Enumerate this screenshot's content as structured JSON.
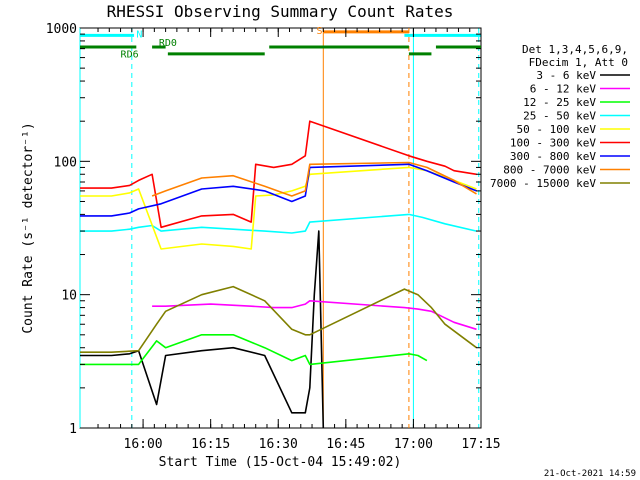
{
  "chart_data": {
    "type": "line",
    "title": "RHESSI Observing Summary Count Rates",
    "xlabel": "Start Time (15-Oct-04 15:49:02)",
    "ylabel": "Count Rate (s⁻¹ detector⁻¹)",
    "y_scale": "log",
    "ylim": [
      1,
      1000
    ],
    "xlim_minutes": [
      -3,
      86
    ],
    "x_ticks": [
      {
        "label": "16:00",
        "min": 11
      },
      {
        "label": "16:15",
        "min": 26
      },
      {
        "label": "16:30",
        "min": 41
      },
      {
        "label": "16:45",
        "min": 56
      },
      {
        "label": "17:00",
        "min": 71
      },
      {
        "label": "17:15",
        "min": 86
      }
    ],
    "y_ticks": [
      {
        "label": "1",
        "value": 1
      },
      {
        "label": "10",
        "value": 10
      },
      {
        "label": "100",
        "value": 100
      },
      {
        "label": "1000",
        "value": 1000
      }
    ],
    "legend_header": [
      "Det 1,3,4,5,6,9,",
      "FDecim 1, Att 0"
    ],
    "legend_position": "right",
    "series": [
      {
        "name": "3 - 6 keV",
        "color": "#000000",
        "points": [
          [
            -3,
            3.5
          ],
          [
            4,
            3.5
          ],
          [
            8,
            3.6
          ],
          [
            10,
            3.8
          ],
          [
            14,
            1.5
          ],
          [
            16,
            3.5
          ],
          [
            24,
            3.8
          ],
          [
            31,
            4
          ],
          [
            38,
            3.5
          ],
          [
            44,
            1.3
          ],
          [
            45,
            1.3
          ],
          [
            47,
            1.3
          ],
          [
            48,
            2
          ],
          [
            49,
            10
          ],
          [
            50,
            30
          ],
          [
            51,
            1
          ]
        ]
      },
      {
        "name": "6 - 12 keV",
        "color": "#ff00ff",
        "points": [
          [
            13,
            8.2
          ],
          [
            16,
            8.2
          ],
          [
            26,
            8.5
          ],
          [
            35,
            8.2
          ],
          [
            40,
            8
          ],
          [
            44,
            8
          ],
          [
            47,
            8.5
          ],
          [
            48,
            9
          ],
          [
            69,
            8
          ],
          [
            72,
            7.8
          ],
          [
            75,
            7.5
          ],
          [
            80,
            6.2
          ],
          [
            85,
            5.5
          ]
        ]
      },
      {
        "name": "12 - 25 keV",
        "color": "#00ff00",
        "points": [
          [
            -3,
            3
          ],
          [
            4,
            3
          ],
          [
            10,
            3
          ],
          [
            14,
            4.5
          ],
          [
            16,
            4
          ],
          [
            24,
            5
          ],
          [
            31,
            5
          ],
          [
            38,
            4
          ],
          [
            44,
            3.2
          ],
          [
            47,
            3.5
          ],
          [
            48,
            3
          ],
          [
            70,
            3.6
          ],
          [
            72,
            3.5
          ],
          [
            74,
            3.2
          ]
        ]
      },
      {
        "name": "25 - 50 keV",
        "color": "#00ffff",
        "points": [
          [
            -3,
            30
          ],
          [
            4,
            30
          ],
          [
            8,
            31
          ],
          [
            10,
            32
          ],
          [
            13,
            33
          ],
          [
            15,
            30
          ],
          [
            24,
            32
          ],
          [
            31,
            31
          ],
          [
            38,
            30
          ],
          [
            44,
            29
          ],
          [
            47,
            30
          ],
          [
            48,
            35
          ],
          [
            70,
            40
          ],
          [
            73,
            38
          ],
          [
            78,
            34
          ],
          [
            85,
            30
          ]
        ]
      },
      {
        "name": "50 - 100 keV",
        "color": "#ffff00",
        "points": [
          [
            -3,
            55
          ],
          [
            4,
            55
          ],
          [
            8,
            58
          ],
          [
            10,
            62
          ],
          [
            15,
            22
          ],
          [
            24,
            24
          ],
          [
            31,
            23
          ],
          [
            35,
            22
          ],
          [
            36,
            55
          ],
          [
            40,
            56
          ],
          [
            44,
            60
          ],
          [
            47,
            65
          ],
          [
            48,
            80
          ],
          [
            70,
            90
          ],
          [
            74,
            85
          ],
          [
            80,
            72
          ],
          [
            85,
            62
          ]
        ]
      },
      {
        "name": "100 - 300 keV",
        "color": "#ff0000",
        "points": [
          [
            -3,
            63
          ],
          [
            4,
            63
          ],
          [
            8,
            66
          ],
          [
            10,
            72
          ],
          [
            13,
            80
          ],
          [
            15,
            32
          ],
          [
            24,
            39
          ],
          [
            31,
            40
          ],
          [
            35,
            35
          ],
          [
            36,
            95
          ],
          [
            40,
            90
          ],
          [
            44,
            95
          ],
          [
            47,
            110
          ],
          [
            48,
            200
          ],
          [
            70,
            110
          ],
          [
            74,
            100
          ],
          [
            78,
            92
          ],
          [
            80,
            85
          ],
          [
            85,
            80
          ]
        ]
      },
      {
        "name": "300 - 800 keV",
        "color": "#0000ff",
        "points": [
          [
            -3,
            39
          ],
          [
            4,
            39
          ],
          [
            8,
            41
          ],
          [
            10,
            44
          ],
          [
            15,
            48
          ],
          [
            24,
            62
          ],
          [
            31,
            65
          ],
          [
            38,
            60
          ],
          [
            44,
            50
          ],
          [
            47,
            55
          ],
          [
            48,
            90
          ],
          [
            70,
            95
          ],
          [
            74,
            85
          ],
          [
            80,
            70
          ],
          [
            85,
            60
          ]
        ]
      },
      {
        "name": "800 - 7000 keV",
        "color": "#ff8000",
        "points": [
          [
            13,
            55
          ],
          [
            16,
            60
          ],
          [
            24,
            75
          ],
          [
            31,
            78
          ],
          [
            38,
            65
          ],
          [
            44,
            55
          ],
          [
            47,
            60
          ],
          [
            48,
            95
          ],
          [
            70,
            98
          ],
          [
            74,
            90
          ],
          [
            80,
            72
          ],
          [
            85,
            57
          ]
        ]
      },
      {
        "name": "7000 - 15000 keV",
        "color": "#808000",
        "points": [
          [
            -3,
            3.7
          ],
          [
            4,
            3.7
          ],
          [
            10,
            3.8
          ],
          [
            14,
            6
          ],
          [
            16,
            7.5
          ],
          [
            24,
            10
          ],
          [
            31,
            11.5
          ],
          [
            38,
            9
          ],
          [
            44,
            5.5
          ],
          [
            47,
            5
          ],
          [
            48,
            5
          ],
          [
            69,
            11
          ],
          [
            72,
            10
          ],
          [
            75,
            8
          ],
          [
            78,
            6
          ],
          [
            85,
            4
          ]
        ]
      }
    ],
    "annotations": [
      {
        "text": "N",
        "color": "#00ffff",
        "x_min": 9.5,
        "y_val": 850
      },
      {
        "text": "S",
        "color": "#ff8000",
        "x_min": 49.5,
        "y_val": 900
      },
      {
        "text": "RD0",
        "color": "#008000",
        "x_min": 14.5,
        "y_val": 730
      },
      {
        "text": "RD6",
        "color": "#008000",
        "x_min": 6,
        "y_val": 600
      }
    ],
    "state_bars": [
      {
        "color": "#00ffff",
        "y_val": 880,
        "segments": [
          [
            -3,
            9
          ],
          [
            69,
            86
          ]
        ]
      },
      {
        "color": "#ff8000",
        "y_val": 935,
        "segments": [
          [
            51,
            70
          ]
        ]
      },
      {
        "color": "#008000",
        "y_val": 720,
        "segments": [
          [
            -3,
            9.5
          ],
          [
            13,
            16
          ]
        ]
      },
      {
        "color": "#008000",
        "y_val": 640,
        "segments": [
          [
            16.5,
            38
          ]
        ]
      },
      {
        "color": "#008000",
        "y_val": 720,
        "segments": [
          [
            39,
            70
          ]
        ]
      },
      {
        "color": "#008000",
        "y_val": 640,
        "segments": [
          [
            70,
            75
          ]
        ]
      },
      {
        "color": "#008000",
        "y_val": 720,
        "segments": [
          [
            76,
            86
          ]
        ]
      }
    ],
    "vertical_markers": [
      {
        "color": "#00ffff",
        "x_min": -3,
        "style": "solid"
      },
      {
        "color": "#00ffff",
        "x_min": 8.5,
        "style": "dashed"
      },
      {
        "color": "#ff8000",
        "x_min": 51,
        "style": "solid"
      },
      {
        "color": "#ff8000",
        "x_min": 70,
        "style": "dashed"
      },
      {
        "color": "#00ffff",
        "x_min": 71,
        "style": "solid"
      },
      {
        "color": "#00ffff",
        "x_min": 85.5,
        "style": "dashed"
      }
    ],
    "grid": false
  },
  "footer": {
    "timestamp": "21-Oct-2021 14:59"
  }
}
